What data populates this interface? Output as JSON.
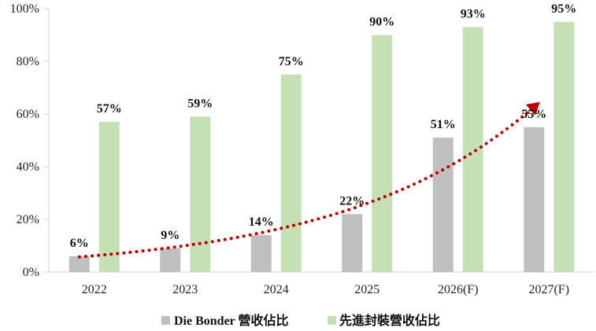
{
  "chart_data": {
    "type": "bar",
    "categories": [
      "2022",
      "2023",
      "2024",
      "2025",
      "2026(F)",
      "2027(F)"
    ],
    "series": [
      {
        "name": "Die Bonder 營收佔比",
        "values": [
          6,
          9,
          14,
          22,
          51,
          55
        ],
        "labels": [
          "6%",
          "9%",
          "14%",
          "22%",
          "51%",
          "55%"
        ],
        "color": "#bfbfbf"
      },
      {
        "name": "先進封裝營收佔比",
        "values": [
          57,
          59,
          75,
          90,
          93,
          95
        ],
        "labels": [
          "57%",
          "59%",
          "75%",
          "90%",
          "93%",
          "95%"
        ],
        "color": "#c5e0b4"
      }
    ],
    "ylim": [
      0,
      100
    ],
    "yticks": [
      0,
      20,
      40,
      60,
      80,
      100
    ],
    "ytick_labels": [
      "0%",
      "20%",
      "40%",
      "60%",
      "80%",
      "100%"
    ],
    "trend": {
      "series": "Die Bonder 營收佔比",
      "style": "dotted-arrow",
      "color": "#c00000"
    },
    "grid": false,
    "legend": "bottom"
  }
}
